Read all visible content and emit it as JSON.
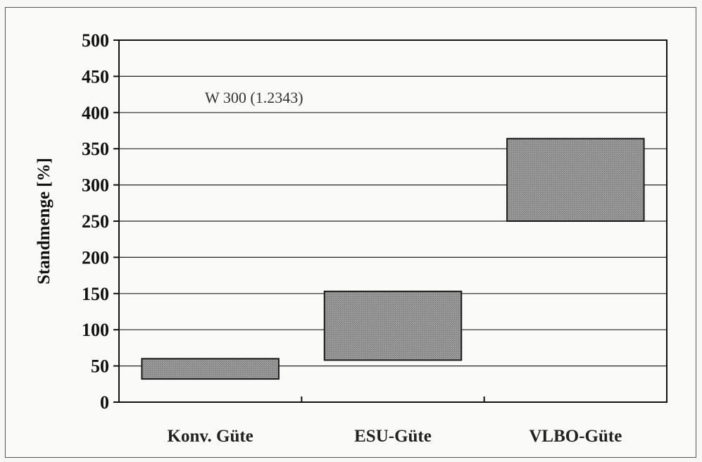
{
  "chart_data": {
    "type": "bar",
    "subtype": "floating-range",
    "categories": [
      "Konv. Güte",
      "ESU-Güte",
      "VLBO-Güte"
    ],
    "ranges": [
      [
        32,
        60
      ],
      [
        58,
        153
      ],
      [
        250,
        364
      ]
    ],
    "ylabel": "Standmenge [%]",
    "xlabel": "",
    "ylim": [
      0,
      500
    ],
    "yticks": [
      0,
      50,
      100,
      150,
      200,
      250,
      300,
      350,
      400,
      450,
      500
    ],
    "annotation": "W 300 (1.2343)",
    "grid": true,
    "bar_color": "#8a8a8a",
    "bar_edge": "#1a1a1a",
    "legend": "none"
  }
}
